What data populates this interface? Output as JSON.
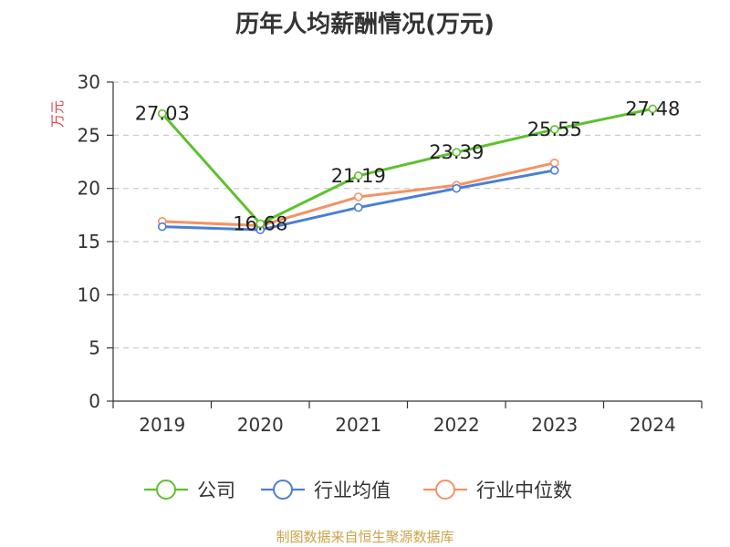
{
  "title": "历年人均薪酬情况(万元)",
  "footer": "制图数据来自恒生聚源数据库",
  "chart_data": {
    "type": "line",
    "title": "历年人均薪酬情况(万元)",
    "ylabel": "万元",
    "xlabel": "",
    "categories": [
      "2019",
      "2020",
      "2021",
      "2022",
      "2023",
      "2024"
    ],
    "ylim": [
      0,
      30
    ],
    "yticks": [
      0,
      5,
      10,
      15,
      20,
      25,
      30
    ],
    "grid": true,
    "legend_position": "bottom",
    "series": [
      {
        "name": "公司",
        "color": "#5ec12f",
        "values": [
          27.03,
          16.68,
          21.19,
          23.39,
          25.55,
          27.48
        ],
        "labels": [
          "27.03",
          "16.68",
          "21.19",
          "23.39",
          "25.55",
          "27.48"
        ]
      },
      {
        "name": "行业均值",
        "color": "#4a7fd6",
        "values": [
          16.4,
          16.1,
          18.2,
          20.0,
          21.7,
          null
        ]
      },
      {
        "name": "行业中位数",
        "color": "#f39366",
        "values": [
          16.9,
          16.5,
          19.2,
          20.3,
          22.4,
          null
        ]
      }
    ]
  }
}
